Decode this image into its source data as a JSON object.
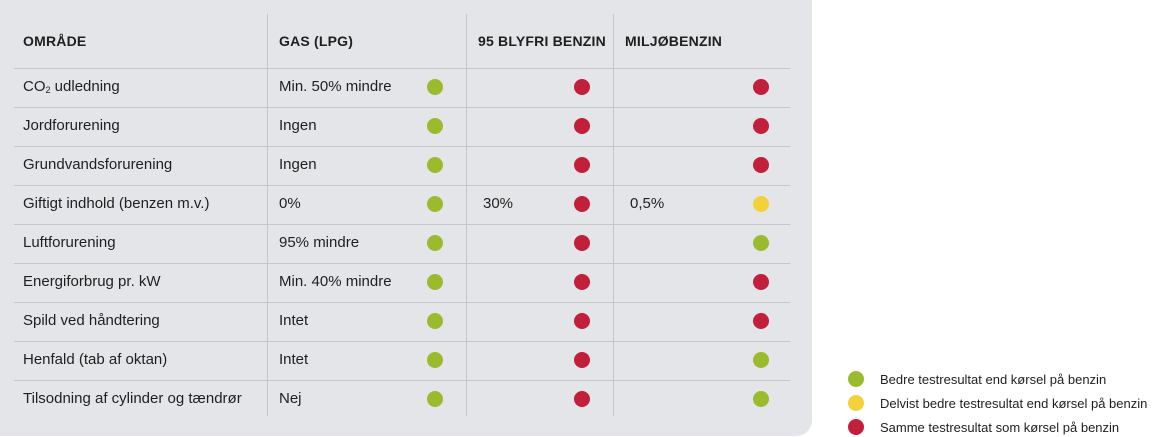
{
  "colors": {
    "better": "#9bbb2e",
    "partial": "#f3d13a",
    "same": "#c21f3a"
  },
  "headers": {
    "area": "OMRÅDE",
    "gas": "GAS (LPG)",
    "blyfri": "95 BLYFRI BENZIN",
    "miljo": "MILJØBENZIN"
  },
  "rows": [
    {
      "area": "CO",
      "area_sub": "2",
      "area_rest": " udledning",
      "gas": "Min. 50% mindre",
      "gas_status": "better",
      "blyfri": "",
      "blyfri_status": "same",
      "miljo": "",
      "miljo_status": "same"
    },
    {
      "area": "Jordforurening",
      "gas": "Ingen",
      "gas_status": "better",
      "blyfri": "",
      "blyfri_status": "same",
      "miljo": "",
      "miljo_status": "same"
    },
    {
      "area": "Grundvandsforurening",
      "gas": "Ingen",
      "gas_status": "better",
      "blyfri": "",
      "blyfri_status": "same",
      "miljo": "",
      "miljo_status": "same"
    },
    {
      "area": "Giftigt indhold (benzen m.v.)",
      "gas": "0%",
      "gas_status": "better",
      "blyfri": "30%",
      "blyfri_status": "same",
      "miljo": "0,5%",
      "miljo_status": "partial"
    },
    {
      "area": "Luftforurening",
      "gas": "95% mindre",
      "gas_status": "better",
      "blyfri": "",
      "blyfri_status": "same",
      "miljo": "",
      "miljo_status": "better"
    },
    {
      "area": "Energiforbrug pr. kW",
      "gas": "Min. 40% mindre",
      "gas_status": "better",
      "blyfri": "",
      "blyfri_status": "same",
      "miljo": "",
      "miljo_status": "same"
    },
    {
      "area": "Spild ved håndtering",
      "gas": "Intet",
      "gas_status": "better",
      "blyfri": "",
      "blyfri_status": "same",
      "miljo": "",
      "miljo_status": "same"
    },
    {
      "area": "Henfald (tab af oktan)",
      "gas": "Intet",
      "gas_status": "better",
      "blyfri": "",
      "blyfri_status": "same",
      "miljo": "",
      "miljo_status": "better"
    },
    {
      "area": "Tilsodning af cylinder og tændrør",
      "gas": "Nej",
      "gas_status": "better",
      "blyfri": "",
      "blyfri_status": "same",
      "miljo": "",
      "miljo_status": "better"
    }
  ],
  "legend": [
    {
      "status": "better",
      "label": "Bedre testresultat end kørsel på benzin"
    },
    {
      "status": "partial",
      "label": "Delvist bedre testresultat end kørsel på benzin"
    },
    {
      "status": "same",
      "label": "Samme testresultat som kørsel på benzin"
    }
  ]
}
